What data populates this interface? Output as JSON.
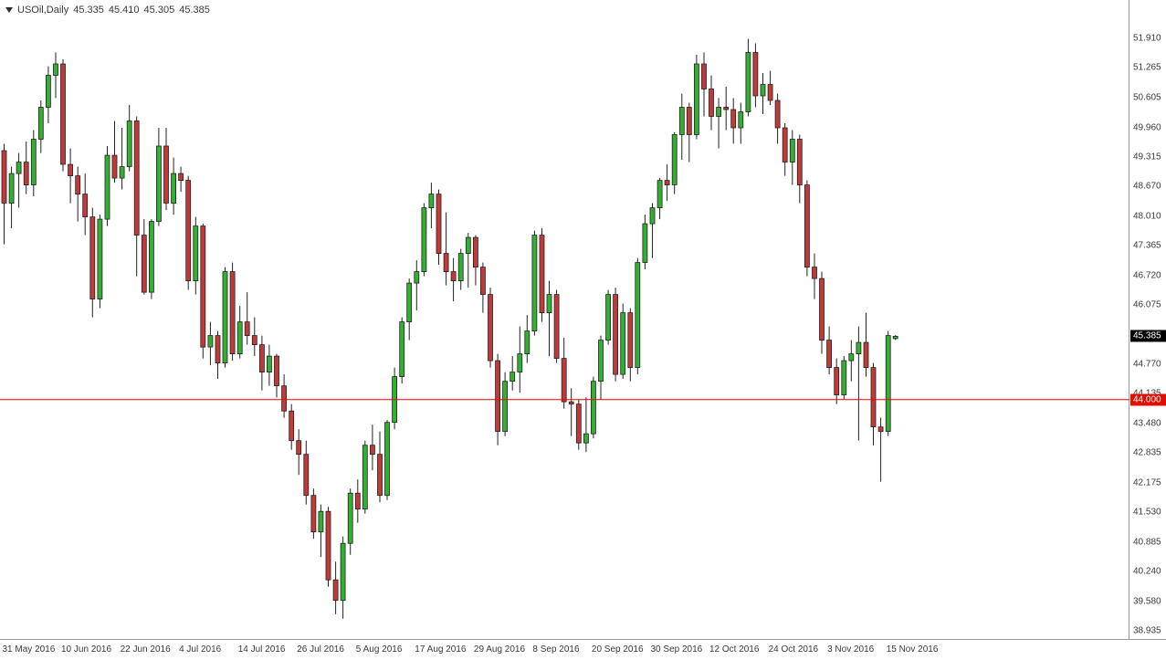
{
  "header": {
    "symbol_timeframe": "USOil,Daily",
    "open": "45.335",
    "high": "45.410",
    "low": "45.305",
    "close": "45.385"
  },
  "price_axis": {
    "current_price_tag": "45.385",
    "hline_tag": "44.000"
  },
  "colors": {
    "bull": "#33B033",
    "bear": "#C03A3A",
    "outline": "#222222",
    "hline": "#FF0000",
    "hline_tag_bg": "#E01000",
    "current_tag_bg": "#000000"
  },
  "chart_data": {
    "type": "candlestick",
    "symbol": "USOil",
    "timeframe": "Daily",
    "current_bar_ohlc": {
      "open": 45.335,
      "high": 45.41,
      "low": 45.305,
      "close": 45.385
    },
    "horizontal_line": 44.0,
    "ylim": [
      38.935,
      51.91
    ],
    "grid": false,
    "price_axis_labels": [
      "51.910",
      "51.265",
      "50.605",
      "49.960",
      "49.315",
      "48.670",
      "48.010",
      "47.365",
      "46.720",
      "46.075",
      "44.770",
      "44.135",
      "43.480",
      "42.835",
      "42.175",
      "41.530",
      "40.885",
      "40.240",
      "39.580",
      "38.935"
    ],
    "time_axis_labels": [
      {
        "text": "31 May 2016",
        "bar_index": 0
      },
      {
        "text": "10 Jun 2016",
        "bar_index": 8
      },
      {
        "text": "22 Jun 2016",
        "bar_index": 16
      },
      {
        "text": "4 Jul 2016",
        "bar_index": 24
      },
      {
        "text": "14 Jul 2016",
        "bar_index": 32
      },
      {
        "text": "26 Jul 2016",
        "bar_index": 40
      },
      {
        "text": "5 Aug 2016",
        "bar_index": 48
      },
      {
        "text": "17 Aug 2016",
        "bar_index": 56
      },
      {
        "text": "29 Aug 2016",
        "bar_index": 64
      },
      {
        "text": "8 Sep 2016",
        "bar_index": 72
      },
      {
        "text": "20 Sep 2016",
        "bar_index": 80
      },
      {
        "text": "30 Sep 2016",
        "bar_index": 88
      },
      {
        "text": "12 Oct 2016",
        "bar_index": 96
      },
      {
        "text": "24 Oct 2016",
        "bar_index": 104
      },
      {
        "text": "3 Nov 2016",
        "bar_index": 112
      },
      {
        "text": "15 Nov 2016",
        "bar_index": 120
      }
    ],
    "candles": [
      [
        "2016-05-31",
        49.45,
        49.6,
        47.4,
        48.3
      ],
      [
        "2016-06-01",
        48.3,
        49.1,
        47.75,
        48.95
      ],
      [
        "2016-06-02",
        48.95,
        49.4,
        48.2,
        49.2
      ],
      [
        "2016-06-03",
        49.2,
        49.65,
        48.5,
        48.7
      ],
      [
        "2016-06-06",
        48.7,
        49.9,
        48.45,
        49.7
      ],
      [
        "2016-06-07",
        49.7,
        50.55,
        49.4,
        50.4
      ],
      [
        "2016-06-08",
        50.4,
        51.3,
        50.05,
        51.1
      ],
      [
        "2016-06-09",
        51.1,
        51.6,
        50.6,
        51.35
      ],
      [
        "2016-06-10",
        51.35,
        51.45,
        49.0,
        49.15
      ],
      [
        "2016-06-13",
        49.15,
        49.5,
        48.3,
        48.9
      ],
      [
        "2016-06-14",
        48.9,
        49.1,
        47.9,
        48.5
      ],
      [
        "2016-06-15",
        48.5,
        48.95,
        47.6,
        48.0
      ],
      [
        "2016-06-16",
        48.0,
        48.2,
        45.8,
        46.2
      ],
      [
        "2016-06-17",
        46.2,
        48.05,
        46.0,
        47.95
      ],
      [
        "2016-06-20",
        47.95,
        49.55,
        47.8,
        49.35
      ],
      [
        "2016-06-21",
        49.35,
        50.1,
        48.75,
        48.85
      ],
      [
        "2016-06-22",
        48.85,
        49.95,
        48.6,
        49.1
      ],
      [
        "2016-06-23",
        49.1,
        50.45,
        49.0,
        50.1
      ],
      [
        "2016-06-24",
        50.1,
        50.2,
        46.7,
        47.6
      ],
      [
        "2016-06-27",
        47.6,
        47.95,
        46.3,
        46.35
      ],
      [
        "2016-06-28",
        46.35,
        47.95,
        46.2,
        47.9
      ],
      [
        "2016-06-29",
        47.9,
        49.95,
        47.8,
        49.55
      ],
      [
        "2016-06-30",
        49.55,
        49.95,
        48.15,
        48.3
      ],
      [
        "2016-07-01",
        48.3,
        49.3,
        48.05,
        48.95
      ],
      [
        "2016-07-04",
        48.95,
        49.1,
        48.55,
        48.8
      ],
      [
        "2016-07-05",
        48.8,
        48.9,
        46.4,
        46.6
      ],
      [
        "2016-07-06",
        46.6,
        48.0,
        46.3,
        47.8
      ],
      [
        "2016-07-07",
        47.8,
        47.85,
        44.9,
        45.15
      ],
      [
        "2016-07-08",
        45.15,
        45.7,
        44.75,
        45.4
      ],
      [
        "2016-07-11",
        45.4,
        45.5,
        44.45,
        44.8
      ],
      [
        "2016-07-12",
        44.8,
        46.9,
        44.7,
        46.8
      ],
      [
        "2016-07-13",
        46.8,
        47.0,
        44.85,
        45.0
      ],
      [
        "2016-07-14",
        45.0,
        46.05,
        44.9,
        45.7
      ],
      [
        "2016-07-15",
        45.7,
        46.35,
        45.2,
        45.4
      ],
      [
        "2016-07-18",
        45.4,
        45.8,
        44.95,
        45.2
      ],
      [
        "2016-07-19",
        45.2,
        45.4,
        44.2,
        44.6
      ],
      [
        "2016-07-20",
        44.6,
        45.2,
        44.3,
        44.95
      ],
      [
        "2016-07-21",
        44.95,
        45.0,
        44.05,
        44.3
      ],
      [
        "2016-07-22",
        44.3,
        44.55,
        43.6,
        43.75
      ],
      [
        "2016-07-25",
        43.75,
        43.9,
        42.9,
        43.1
      ],
      [
        "2016-07-26",
        43.1,
        43.35,
        42.35,
        42.8
      ],
      [
        "2016-07-27",
        42.8,
        43.1,
        41.7,
        41.9
      ],
      [
        "2016-07-28",
        41.9,
        42.05,
        40.95,
        41.1
      ],
      [
        "2016-07-29",
        41.1,
        41.7,
        40.55,
        41.55
      ],
      [
        "2016-08-01",
        41.55,
        41.65,
        39.9,
        40.05
      ],
      [
        "2016-08-02",
        40.05,
        40.45,
        39.3,
        39.6
      ],
      [
        "2016-08-03",
        39.6,
        41.0,
        39.2,
        40.85
      ],
      [
        "2016-08-04",
        40.85,
        42.05,
        40.6,
        41.95
      ],
      [
        "2016-08-05",
        41.95,
        42.25,
        41.3,
        41.6
      ],
      [
        "2016-08-08",
        41.6,
        43.1,
        41.5,
        43.0
      ],
      [
        "2016-08-09",
        43.0,
        43.45,
        42.45,
        42.8
      ],
      [
        "2016-08-10",
        42.8,
        43.3,
        41.75,
        41.9
      ],
      [
        "2016-08-11",
        41.9,
        43.55,
        41.8,
        43.5
      ],
      [
        "2016-08-12",
        43.5,
        44.7,
        43.35,
        44.5
      ],
      [
        "2016-08-15",
        44.5,
        45.8,
        44.35,
        45.7
      ],
      [
        "2016-08-16",
        45.7,
        46.65,
        45.3,
        46.55
      ],
      [
        "2016-08-17",
        46.55,
        47.05,
        45.95,
        46.8
      ],
      [
        "2016-08-18",
        46.8,
        48.3,
        46.7,
        48.2
      ],
      [
        "2016-08-19",
        48.2,
        48.75,
        47.75,
        48.5
      ],
      [
        "2016-08-22",
        48.5,
        48.6,
        46.95,
        47.2
      ],
      [
        "2016-08-23",
        47.2,
        48.1,
        46.5,
        46.8
      ],
      [
        "2016-08-24",
        46.8,
        47.1,
        46.15,
        46.6
      ],
      [
        "2016-08-25",
        46.6,
        47.3,
        46.4,
        47.2
      ],
      [
        "2016-08-26",
        47.2,
        47.65,
        46.45,
        47.55
      ],
      [
        "2016-08-29",
        47.55,
        47.6,
        46.5,
        46.9
      ],
      [
        "2016-08-30",
        46.9,
        47.0,
        45.9,
        46.3
      ],
      [
        "2016-08-31",
        46.3,
        46.45,
        44.7,
        44.85
      ],
      [
        "2016-09-01",
        44.85,
        45.0,
        43.0,
        43.3
      ],
      [
        "2016-09-02",
        43.3,
        44.6,
        43.2,
        44.4
      ],
      [
        "2016-09-05",
        44.4,
        44.95,
        44.2,
        44.6
      ],
      [
        "2016-09-06",
        44.6,
        45.6,
        44.15,
        45.0
      ],
      [
        "2016-09-07",
        45.0,
        45.85,
        44.8,
        45.5
      ],
      [
        "2016-09-08",
        45.5,
        47.7,
        45.4,
        47.6
      ],
      [
        "2016-09-09",
        47.6,
        47.75,
        45.7,
        45.9
      ],
      [
        "2016-09-12",
        45.9,
        46.6,
        44.95,
        46.3
      ],
      [
        "2016-09-13",
        46.3,
        46.4,
        44.8,
        44.9
      ],
      [
        "2016-09-14",
        44.9,
        45.35,
        43.8,
        43.95
      ],
      [
        "2016-09-15",
        43.95,
        44.25,
        43.2,
        43.9
      ],
      [
        "2016-09-16",
        43.9,
        44.0,
        42.9,
        43.05
      ],
      [
        "2016-09-19",
        43.05,
        44.05,
        42.85,
        43.25
      ],
      [
        "2016-09-20",
        43.25,
        44.5,
        43.15,
        44.4
      ],
      [
        "2016-09-21",
        44.4,
        45.4,
        44.0,
        45.3
      ],
      [
        "2016-09-22",
        45.3,
        46.4,
        45.2,
        46.3
      ],
      [
        "2016-09-23",
        46.3,
        46.45,
        44.4,
        44.55
      ],
      [
        "2016-09-26",
        44.55,
        46.1,
        44.45,
        45.9
      ],
      [
        "2016-09-27",
        45.9,
        46.0,
        44.4,
        44.7
      ],
      [
        "2016-09-28",
        44.7,
        47.1,
        44.55,
        47.0
      ],
      [
        "2016-09-29",
        47.0,
        48.05,
        46.85,
        47.85
      ],
      [
        "2016-09-30",
        47.85,
        48.3,
        47.1,
        48.2
      ],
      [
        "2016-10-03",
        48.2,
        48.85,
        47.95,
        48.8
      ],
      [
        "2016-10-04",
        48.8,
        49.15,
        48.35,
        48.7
      ],
      [
        "2016-10-05",
        48.7,
        49.85,
        48.5,
        49.8
      ],
      [
        "2016-10-06",
        49.8,
        50.7,
        49.25,
        50.4
      ],
      [
        "2016-10-07",
        50.4,
        50.5,
        49.2,
        49.8
      ],
      [
        "2016-10-10",
        49.8,
        51.55,
        49.7,
        51.35
      ],
      [
        "2016-10-11",
        51.35,
        51.6,
        50.2,
        50.8
      ],
      [
        "2016-10-12",
        50.8,
        51.1,
        49.9,
        50.2
      ],
      [
        "2016-10-13",
        50.2,
        50.6,
        49.5,
        50.4
      ],
      [
        "2016-10-14",
        50.4,
        50.85,
        49.9,
        50.35
      ],
      [
        "2016-10-17",
        50.35,
        50.6,
        49.6,
        49.95
      ],
      [
        "2016-10-18",
        49.95,
        50.5,
        49.6,
        50.3
      ],
      [
        "2016-10-19",
        50.3,
        51.9,
        50.2,
        51.6
      ],
      [
        "2016-10-20",
        51.6,
        51.8,
        50.4,
        50.65
      ],
      [
        "2016-10-21",
        50.65,
        51.15,
        50.25,
        50.9
      ],
      [
        "2016-10-24",
        50.9,
        51.2,
        50.45,
        50.55
      ],
      [
        "2016-10-25",
        50.55,
        50.7,
        49.6,
        49.95
      ],
      [
        "2016-10-26",
        49.95,
        50.05,
        48.9,
        49.2
      ],
      [
        "2016-10-27",
        49.2,
        49.9,
        48.7,
        49.7
      ],
      [
        "2016-10-28",
        49.7,
        49.8,
        48.3,
        48.7
      ],
      [
        "2016-10-31",
        48.7,
        48.8,
        46.7,
        46.9
      ],
      [
        "2016-11-01",
        46.9,
        47.2,
        46.2,
        46.65
      ],
      [
        "2016-11-02",
        46.65,
        46.8,
        45.0,
        45.3
      ],
      [
        "2016-11-03",
        45.3,
        45.6,
        44.55,
        44.7
      ],
      [
        "2016-11-04",
        44.7,
        44.9,
        43.9,
        44.1
      ],
      [
        "2016-11-07",
        44.1,
        44.95,
        44.0,
        44.85
      ],
      [
        "2016-11-08",
        44.85,
        45.3,
        44.4,
        45.0
      ],
      [
        "2016-11-09",
        45.0,
        45.6,
        43.1,
        45.25
      ],
      [
        "2016-11-10",
        45.25,
        45.9,
        44.5,
        44.7
      ],
      [
        "2016-11-11",
        44.7,
        44.8,
        43.0,
        43.4
      ],
      [
        "2016-11-14",
        43.4,
        43.6,
        42.2,
        43.3
      ],
      [
        "2016-11-15",
        43.3,
        45.5,
        43.2,
        45.4
      ],
      [
        "2016-11-16",
        45.335,
        45.41,
        45.305,
        45.385
      ]
    ]
  }
}
